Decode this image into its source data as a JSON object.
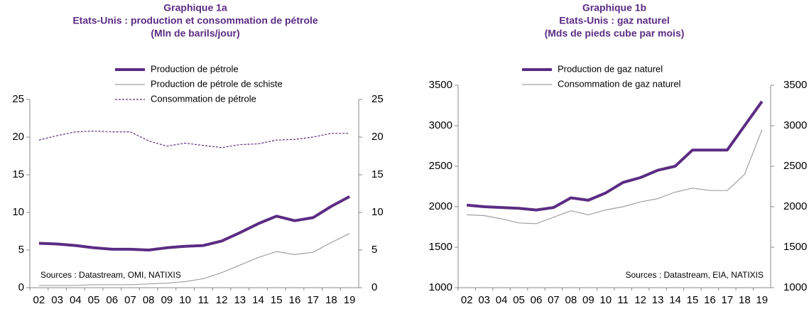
{
  "chart_data": [
    {
      "type": "line",
      "title": "Graphique 1a",
      "subtitle": "Etats-Unis : production et consommation de pétrole",
      "units": "(Mln de barils/jour)",
      "annotation": "Sources : Datastream, OMI, NATIXIS",
      "categories": [
        "02",
        "03",
        "04",
        "05",
        "06",
        "07",
        "08",
        "09",
        "10",
        "11",
        "12",
        "13",
        "14",
        "15",
        "16",
        "17",
        "18",
        "19"
      ],
      "ylim": [
        0,
        25
      ],
      "yticks": [
        0,
        5,
        10,
        15,
        20,
        25
      ],
      "y2lim": [
        0,
        25
      ],
      "y2ticks": [
        0,
        5,
        10,
        15,
        20,
        25
      ],
      "legend": "top-left",
      "series": [
        {
          "name": "Production de pétrole",
          "color": "#5b2c83",
          "style": "thick",
          "values": [
            5.9,
            5.8,
            5.6,
            5.3,
            5.1,
            5.1,
            5.0,
            5.3,
            5.5,
            5.6,
            6.2,
            7.3,
            8.5,
            9.5,
            8.9,
            9.3,
            10.8,
            12.1
          ]
        },
        {
          "name": "Production de pétrole de schiste",
          "color": "#a0a0a0",
          "style": "thin",
          "values": [
            0.3,
            0.3,
            0.3,
            0.4,
            0.4,
            0.4,
            0.5,
            0.6,
            0.8,
            1.2,
            2.0,
            3.0,
            4.0,
            4.8,
            4.4,
            4.7,
            6.0,
            7.2
          ]
        },
        {
          "name": "Consommation de pétrole",
          "color": "#5b2c83",
          "style": "dashed",
          "values": [
            19.6,
            20.2,
            20.7,
            20.8,
            20.7,
            20.7,
            19.5,
            18.8,
            19.2,
            18.9,
            18.6,
            19.0,
            19.1,
            19.6,
            19.7,
            20.0,
            20.5,
            20.5
          ]
        }
      ]
    },
    {
      "type": "line",
      "title": "Graphique 1b",
      "subtitle": "Etats-Unis : gaz naturel",
      "units": "(Mds de pieds cube par mois)",
      "annotation": "Sources : Datastream, EIA, NATIXIS",
      "categories": [
        "02",
        "03",
        "04",
        "05",
        "06",
        "07",
        "08",
        "09",
        "10",
        "11",
        "12",
        "13",
        "14",
        "15",
        "16",
        "17",
        "18",
        "19"
      ],
      "ylim": [
        1000,
        3500
      ],
      "yticks": [
        1000,
        1500,
        2000,
        2500,
        3000,
        3500
      ],
      "y2lim": [
        1000,
        3500
      ],
      "y2ticks": [
        1000,
        1500,
        2000,
        2500,
        3000,
        3500
      ],
      "legend": "top-left",
      "series": [
        {
          "name": "Production de gaz naturel",
          "color": "#5b2c83",
          "style": "thick",
          "values": [
            2020,
            2000,
            1990,
            1980,
            1960,
            1990,
            2110,
            2080,
            2170,
            2300,
            2360,
            2450,
            2500,
            2700,
            2700,
            2700,
            3000,
            3300
          ]
        },
        {
          "name": "Consommation de gaz naturel",
          "color": "#a0a0a0",
          "style": "thin",
          "values": [
            1900,
            1890,
            1850,
            1800,
            1790,
            1870,
            1950,
            1900,
            1960,
            2000,
            2060,
            2100,
            2180,
            2230,
            2200,
            2200,
            2400,
            2950
          ]
        }
      ]
    }
  ]
}
